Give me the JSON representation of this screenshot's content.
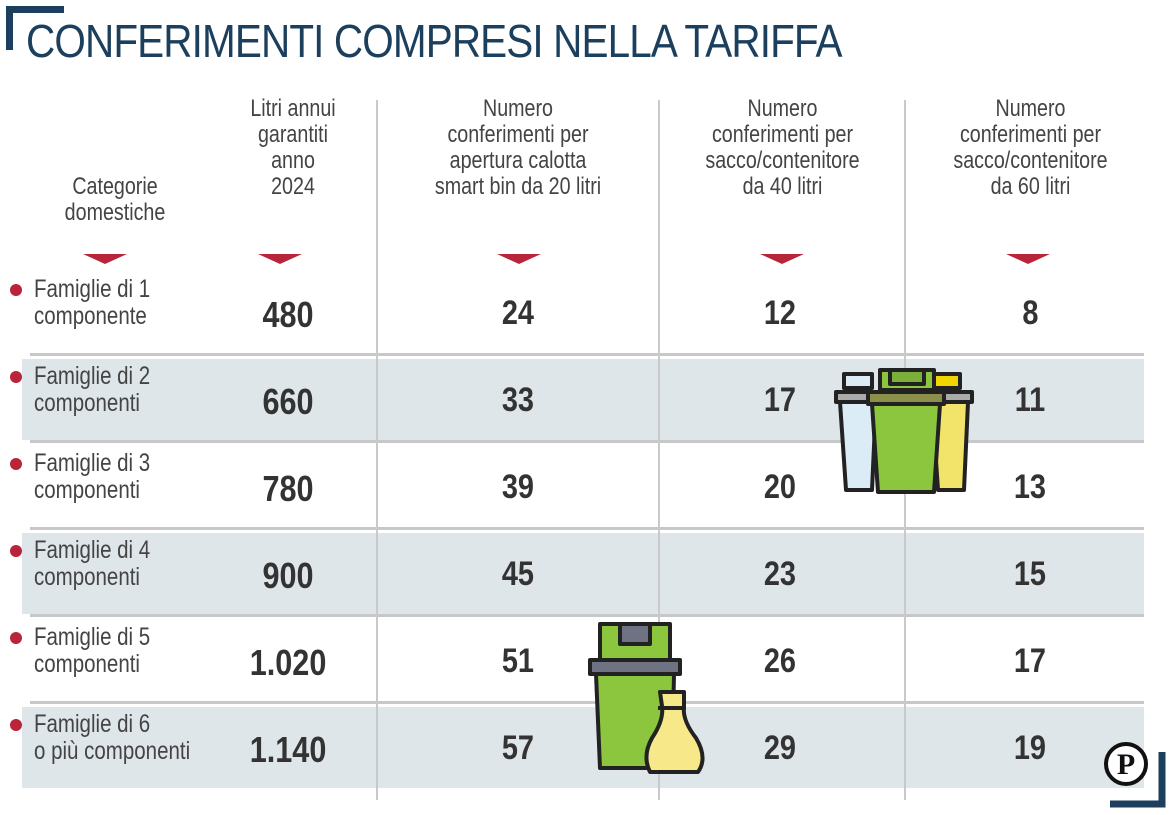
{
  "title": "CONFERIMENTI COMPRESI NELLA TARIFFA",
  "chart_data": {
    "type": "table",
    "title": "CONFERIMENTI COMPRESI NELLA TARIFFA",
    "columns": [
      [
        "Categorie",
        "domestiche"
      ],
      [
        "Litri annui",
        "garantiti",
        "anno",
        "2024"
      ],
      [
        "Numero",
        "conferimenti per",
        "apertura calotta",
        "smart bin da 20 litri"
      ],
      [
        "Numero",
        "conferimenti per",
        "sacco/contenitore",
        "da 40 litri"
      ],
      [
        "Numero",
        "conferimenti per",
        "sacco/contenitore",
        "da 60 litri"
      ]
    ],
    "rows": [
      {
        "category": [
          "Famiglie di 1",
          "componente"
        ],
        "litri": "480",
        "smart20": "24",
        "sacco40": "12",
        "sacco60": "8"
      },
      {
        "category": [
          "Famiglie di 2",
          "componenti"
        ],
        "litri": "660",
        "smart20": "33",
        "sacco40": "17",
        "sacco60": "11"
      },
      {
        "category": [
          "Famiglie di 3",
          "componenti"
        ],
        "litri": "780",
        "smart20": "39",
        "sacco40": "20",
        "sacco60": "13"
      },
      {
        "category": [
          "Famiglie di 4",
          "componenti"
        ],
        "litri": "900",
        "smart20": "45",
        "sacco40": "23",
        "sacco60": "15"
      },
      {
        "category": [
          "Famiglie di 5",
          "componenti"
        ],
        "litri": "1.020",
        "smart20": "51",
        "sacco40": "26",
        "sacco60": "17"
      },
      {
        "category": [
          "Famiglie di 6",
          "o più componenti"
        ],
        "litri": "1.140",
        "smart20": "57",
        "sacco40": "29",
        "sacco60": "19"
      }
    ]
  },
  "colors": {
    "title": "#1b3f5c",
    "accent": "#b8243a",
    "row_shade": "#dfe6ea",
    "bin_green": "#8cc63f",
    "bin_yellow": "#f2e36a",
    "bin_blue": "#dcecf6"
  },
  "icons": {
    "bins": "recycling-bins-icon",
    "bin_bag": "trash-bin-and-bag-icon",
    "logo": "publisher-logo-icon"
  },
  "logo_letter": "P"
}
